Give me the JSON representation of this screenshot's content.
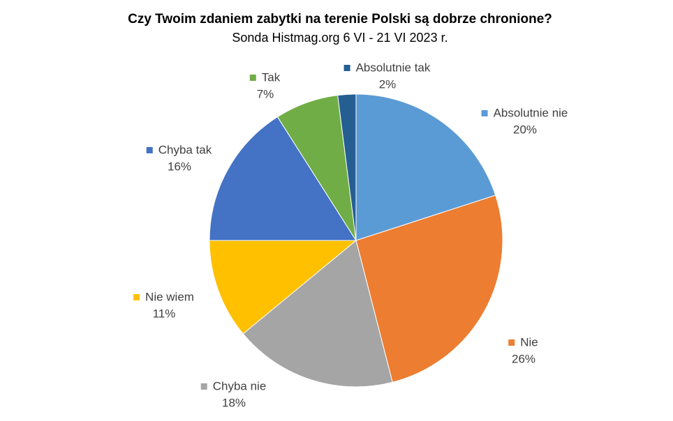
{
  "chart_data": {
    "type": "pie",
    "title": "Czy Twoim zdaniem zabytki na terenie Polski są dobrze chronione?",
    "subtitle": "Sonda Histmag.org 6 VI - 21 VI 2023 r.",
    "categories": [
      "Absolutnie nie",
      "Nie",
      "Chyba nie",
      "Nie wiem",
      "Chyba tak",
      "Tak",
      "Absolutnie tak"
    ],
    "values": [
      20,
      26,
      18,
      11,
      16,
      7,
      2
    ],
    "value_labels": [
      "20%",
      "26%",
      "18%",
      "11%",
      "16%",
      "7%",
      "2%"
    ],
    "colors": [
      "#5b9bd5",
      "#ed7d31",
      "#a5a5a5",
      "#ffc000",
      "#4472c4",
      "#70ad47",
      "#255e91"
    ]
  }
}
